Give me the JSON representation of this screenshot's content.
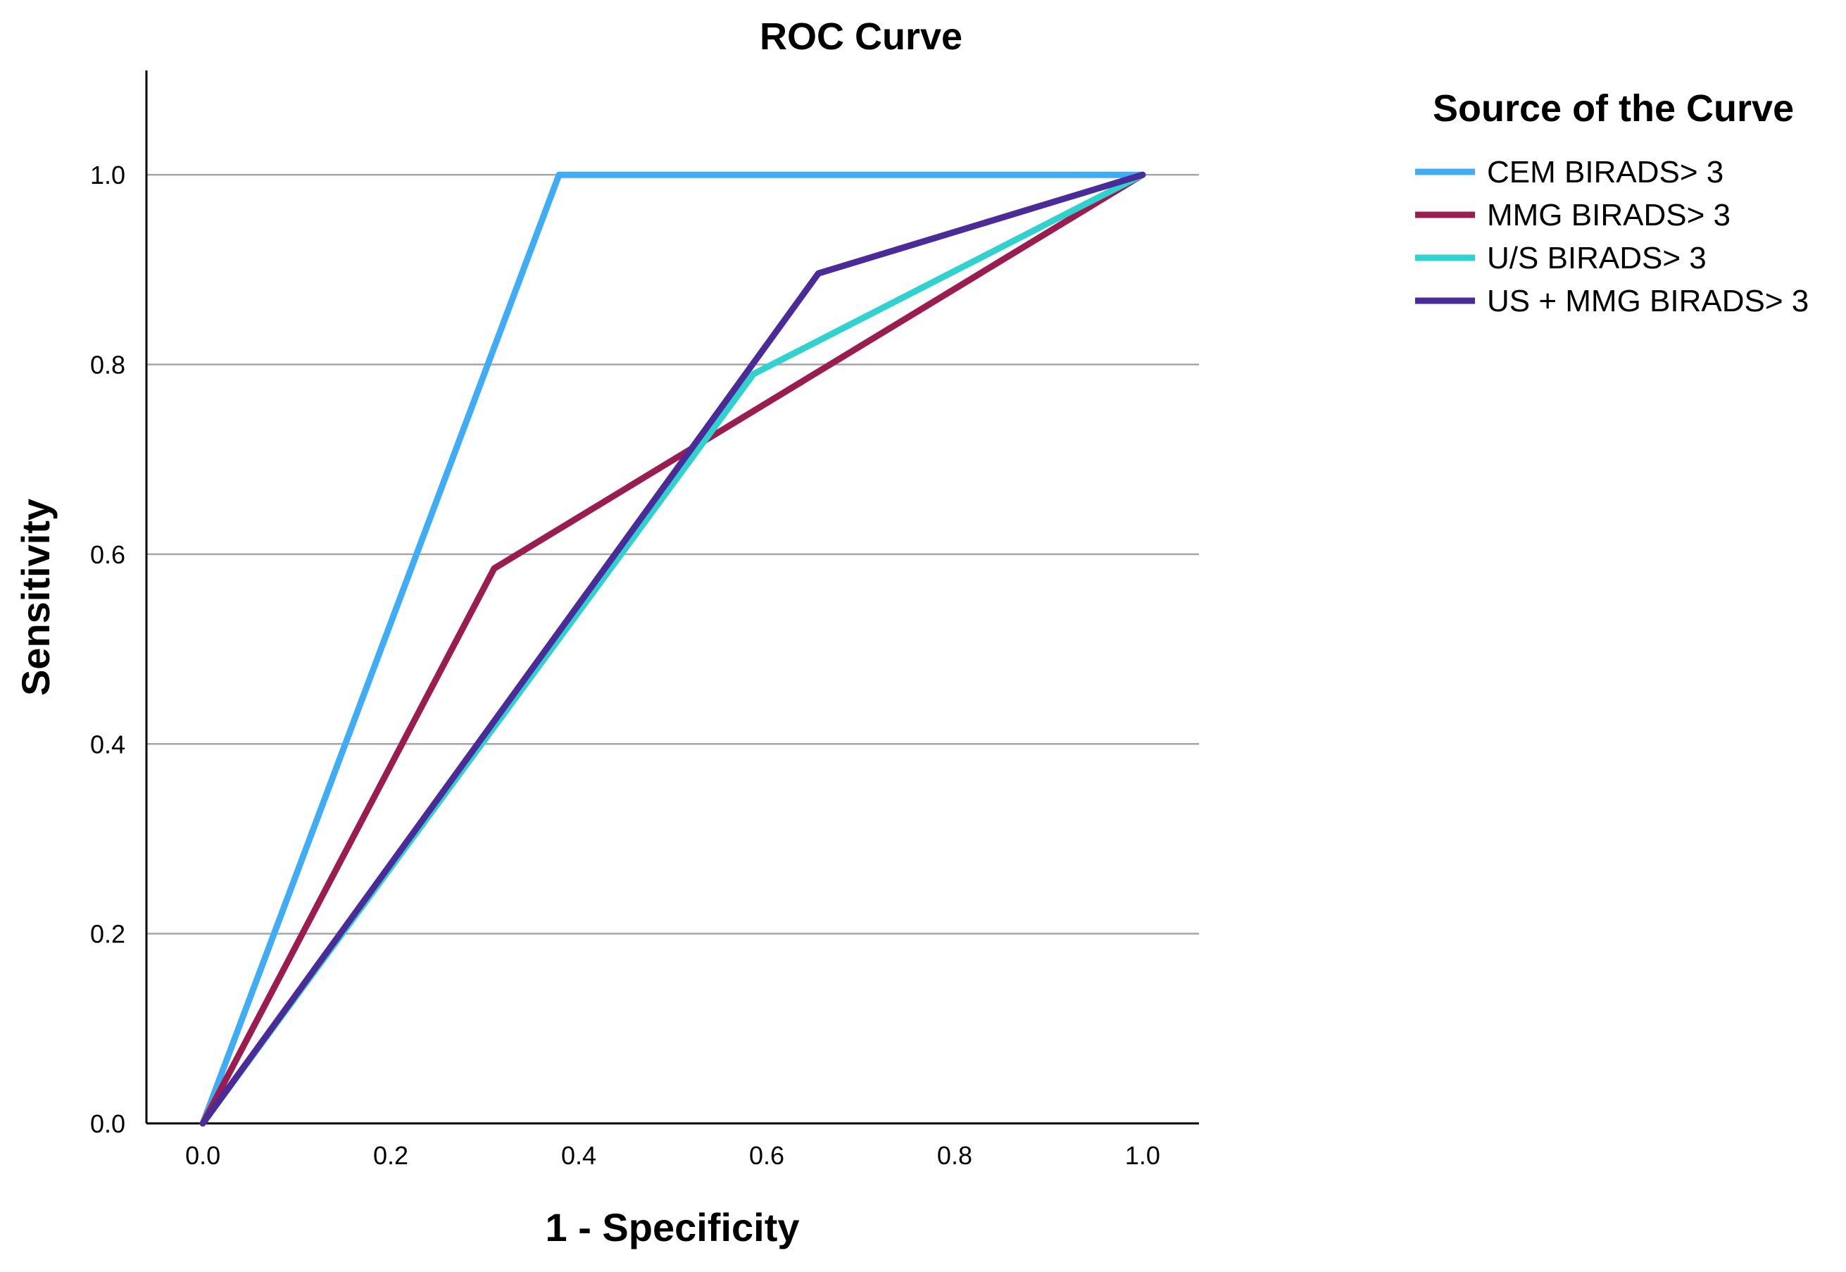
{
  "chart_data": {
    "type": "line",
    "title": "ROC Curve",
    "xlabel": "1 - Specificity",
    "ylabel": "Sensitivity",
    "xlim": [
      -0.06,
      1.06
    ],
    "ylim": [
      0.0,
      1.11
    ],
    "x_ticks": [
      0.0,
      0.2,
      0.4,
      0.6,
      0.8,
      1.0
    ],
    "x_tick_labels": [
      "0.0",
      "0.2",
      "0.4",
      "0.6",
      "0.8",
      "1.0"
    ],
    "y_ticks": [
      0.0,
      0.2,
      0.4,
      0.6,
      0.8,
      1.0
    ],
    "y_tick_labels": [
      "0.0",
      "0.2",
      "0.4",
      "0.6",
      "0.8",
      "1.0"
    ],
    "grid": "horizontal",
    "legend_title": "Source of the Curve",
    "legend_position": "top-right outside",
    "series": [
      {
        "name": "CEM BIRADS> 3",
        "color": "#3fadf6",
        "x": [
          0.0,
          0.379,
          1.0
        ],
        "y": [
          0.0,
          1.0,
          1.0
        ]
      },
      {
        "name": "MMG BIRADS> 3",
        "color": "#9b1c4e",
        "x": [
          0.0,
          0.31,
          1.0
        ],
        "y": [
          0.0,
          0.585,
          1.0
        ]
      },
      {
        "name": "U/S BIRADS> 3",
        "color": "#2ed3cf",
        "x": [
          0.0,
          0.586,
          1.0
        ],
        "y": [
          0.0,
          0.79,
          1.0
        ]
      },
      {
        "name": "US + MMG BIRADS> 3",
        "color": "#4b2a9a",
        "x": [
          0.0,
          0.655,
          1.0
        ],
        "y": [
          0.0,
          0.896,
          1.0
        ]
      }
    ]
  }
}
